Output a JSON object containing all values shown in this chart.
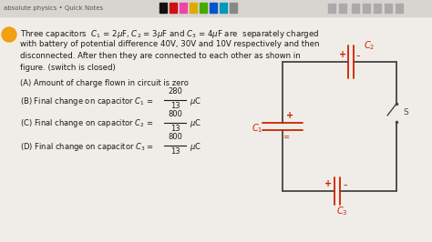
{
  "bg_color": "#f0ede8",
  "toolbar_color": "#d8d5d0",
  "title_bar_text": "absolute physics • Quick Notes",
  "text_color": "#1a1a1a",
  "red_color": "#cc2200",
  "line_color": "#333333",
  "fs_main": 6.2,
  "fs_opt": 6.0,
  "option_B_num": "280",
  "option_B_den": "13",
  "option_C_num": "800",
  "option_C_den": "13",
  "option_D_num": "800",
  "option_D_den": "13",
  "toolbar_icons": [
    "#111111",
    "#cc1111",
    "#ee44aa",
    "#ddaa00",
    "#44aa00",
    "#0055cc",
    "#0099bb",
    "#888888"
  ],
  "circle_color": "#f0a010"
}
